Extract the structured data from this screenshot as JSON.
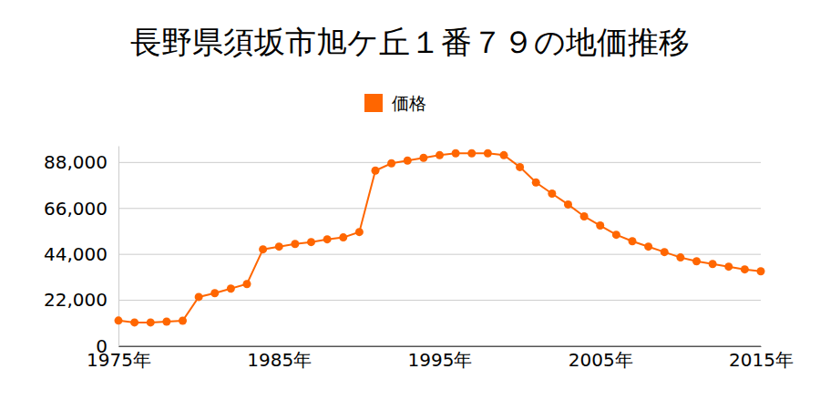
{
  "chart_data": {
    "type": "line",
    "title": "長野県須坂市旭ケ丘１番７９の地価推移",
    "x": [
      1975,
      1976,
      1977,
      1978,
      1979,
      1980,
      1981,
      1982,
      1983,
      1984,
      1985,
      1986,
      1987,
      1988,
      1989,
      1990,
      1991,
      1992,
      1993,
      1994,
      1995,
      1996,
      1997,
      1998,
      1999,
      2000,
      2001,
      2002,
      2003,
      2004,
      2005,
      2006,
      2007,
      2008,
      2009,
      2010,
      2011,
      2012,
      2013,
      2014,
      2015
    ],
    "series": [
      {
        "name": "価格",
        "color": "#ff6600",
        "marker": "circle",
        "values": [
          12300,
          11400,
          11400,
          11800,
          12200,
          23600,
          25400,
          27600,
          29800,
          46400,
          47700,
          49000,
          49900,
          51200,
          52100,
          54700,
          84100,
          87600,
          88900,
          90200,
          91500,
          92400,
          92400,
          92400,
          91500,
          85800,
          78400,
          73100,
          67900,
          62200,
          57800,
          53400,
          50300,
          47700,
          45100,
          42500,
          40700,
          39400,
          38100,
          36800,
          35900
        ]
      }
    ],
    "xlim": [
      1975,
      2015
    ],
    "xticks": [
      {
        "value": 1975,
        "label": "1975年"
      },
      {
        "value": 1985,
        "label": "1985年"
      },
      {
        "value": 1995,
        "label": "1995年"
      },
      {
        "value": 2005,
        "label": "2005年"
      },
      {
        "value": 2015,
        "label": "2015年"
      }
    ],
    "ylim": [
      0,
      96000
    ],
    "yticks": [
      0,
      {
        "value": 22000,
        "label": "22,000"
      },
      {
        "value": 44000,
        "label": "44,000"
      },
      {
        "value": 66000,
        "label": "66,000"
      },
      {
        "value": 88000,
        "label": "88,000"
      }
    ],
    "grid": true,
    "legend": "top"
  }
}
